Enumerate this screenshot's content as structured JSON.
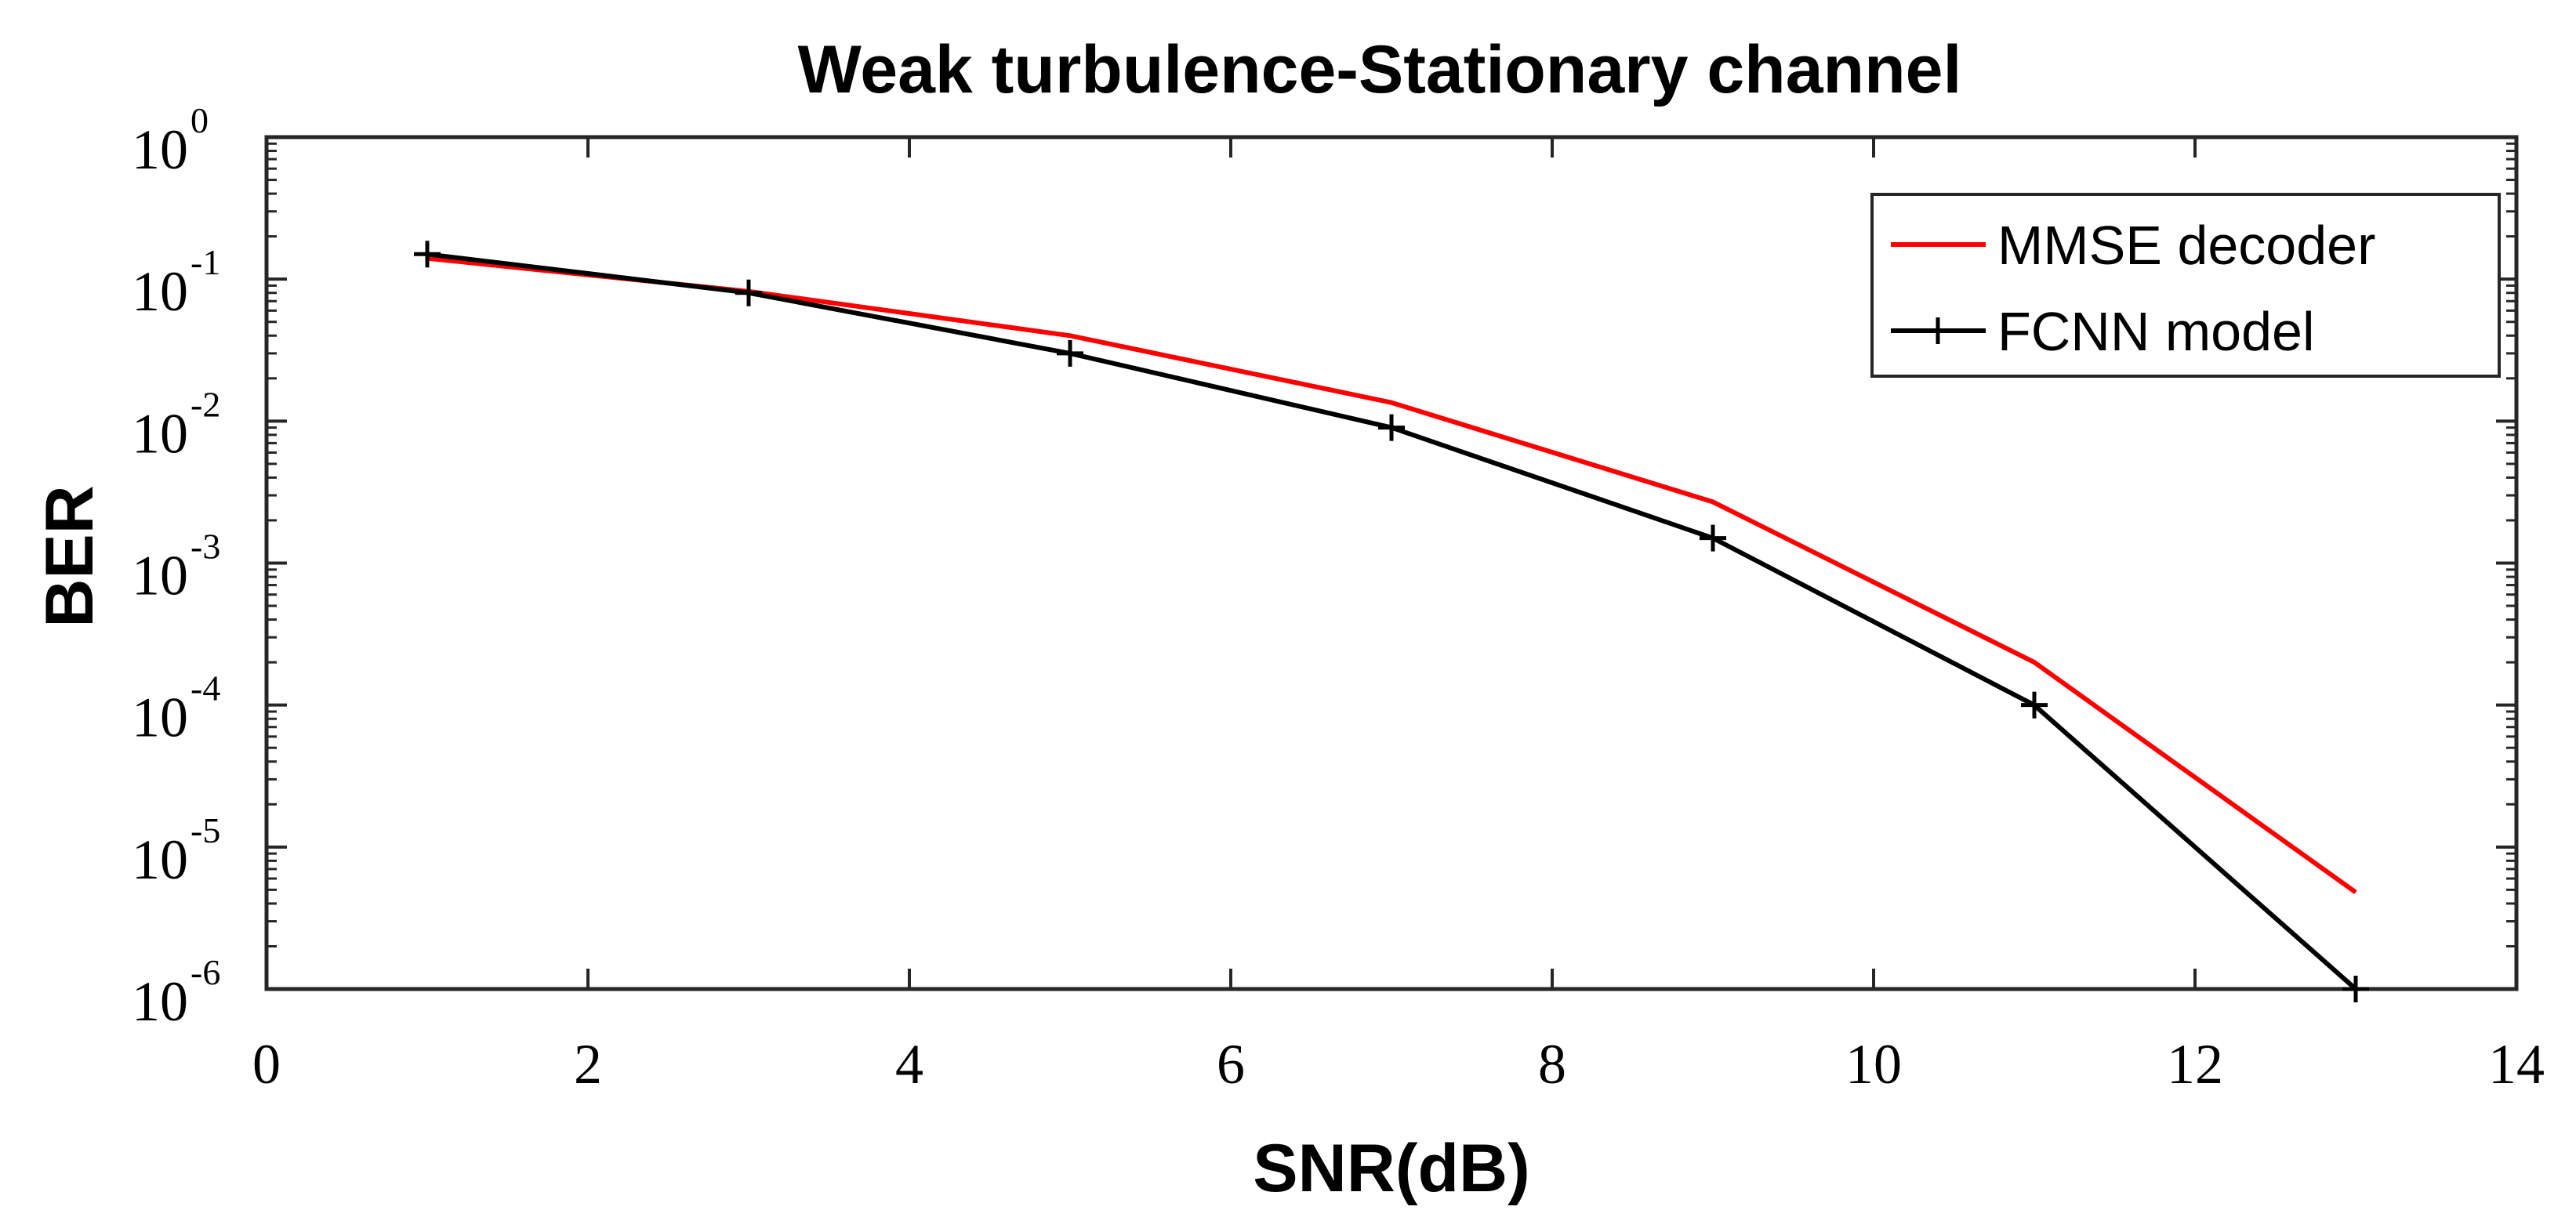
{
  "chart_data": {
    "type": "line",
    "title": "Weak turbulence-Stationary channel",
    "xlabel": "SNR(dB)",
    "ylabel": "BER",
    "xlim": [
      0,
      14
    ],
    "ylim": [
      1e-06,
      1
    ],
    "yscale": "log",
    "x_ticks": [
      0,
      2,
      4,
      6,
      8,
      10,
      12,
      14
    ],
    "x_tick_labels": [
      "0",
      "2",
      "4",
      "6",
      "8",
      "10",
      "12",
      "14"
    ],
    "y_ticks": [
      {
        "value": 1,
        "base": "10",
        "exp": "0"
      },
      {
        "value": 0.1,
        "base": "10",
        "exp": "-1"
      },
      {
        "value": 0.01,
        "base": "10",
        "exp": "-2"
      },
      {
        "value": 0.001,
        "base": "10",
        "exp": "-3"
      },
      {
        "value": 0.0001,
        "base": "10",
        "exp": "-4"
      },
      {
        "value": 1e-05,
        "base": "10",
        "exp": "-5"
      },
      {
        "value": 1e-06,
        "base": "10",
        "exp": "-6"
      }
    ],
    "grid": false,
    "legend_position": "top-right",
    "series": [
      {
        "name": "MMSE decoder",
        "color": "#ff0000",
        "marker": "none",
        "x": [
          1,
          3,
          5,
          7,
          9,
          11,
          13
        ],
        "y": [
          0.14,
          0.082,
          0.04,
          0.0135,
          0.0027,
          0.0002,
          4.8e-06
        ]
      },
      {
        "name": "FCNN model",
        "color": "#000000",
        "marker": "plus",
        "x": [
          1,
          3,
          5,
          7,
          9,
          11,
          13
        ],
        "y": [
          0.15,
          0.08,
          0.03,
          0.009,
          0.0015,
          0.0001,
          1e-06
        ]
      }
    ]
  }
}
